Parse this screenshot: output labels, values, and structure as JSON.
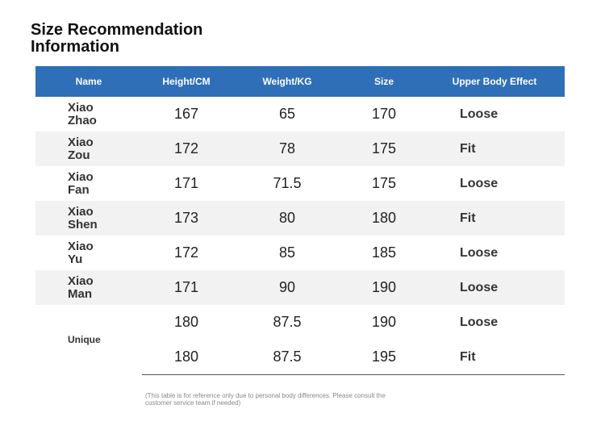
{
  "header": {
    "title": "Size Recommendation Information"
  },
  "table": {
    "columns": [
      "Name",
      "Height/CM",
      "Weight/KG",
      "Size",
      "Upper Body Effect"
    ],
    "rows": [
      [
        "Xiao Zhao",
        167,
        65,
        170,
        "Loose"
      ],
      [
        "Xiao Zou",
        172,
        78,
        175,
        "Fit"
      ],
      [
        "Xiao Fan",
        171,
        71.5,
        175,
        "Loose"
      ],
      [
        "Xiao Shen",
        173,
        80,
        180,
        "Fit"
      ],
      [
        "Xiao Yu",
        172,
        85,
        185,
        "Loose"
      ],
      [
        "Xiao Man",
        171,
        90,
        190,
        "Loose"
      ],
      [
        "Unique",
        180,
        87.5,
        190,
        "Loose"
      ],
      [
        180,
        87.5,
        195,
        "Fit"
      ]
    ]
  },
  "footnote": "(This table is for reference only due to personal body differences. Please consult the customer service team if needed)"
}
